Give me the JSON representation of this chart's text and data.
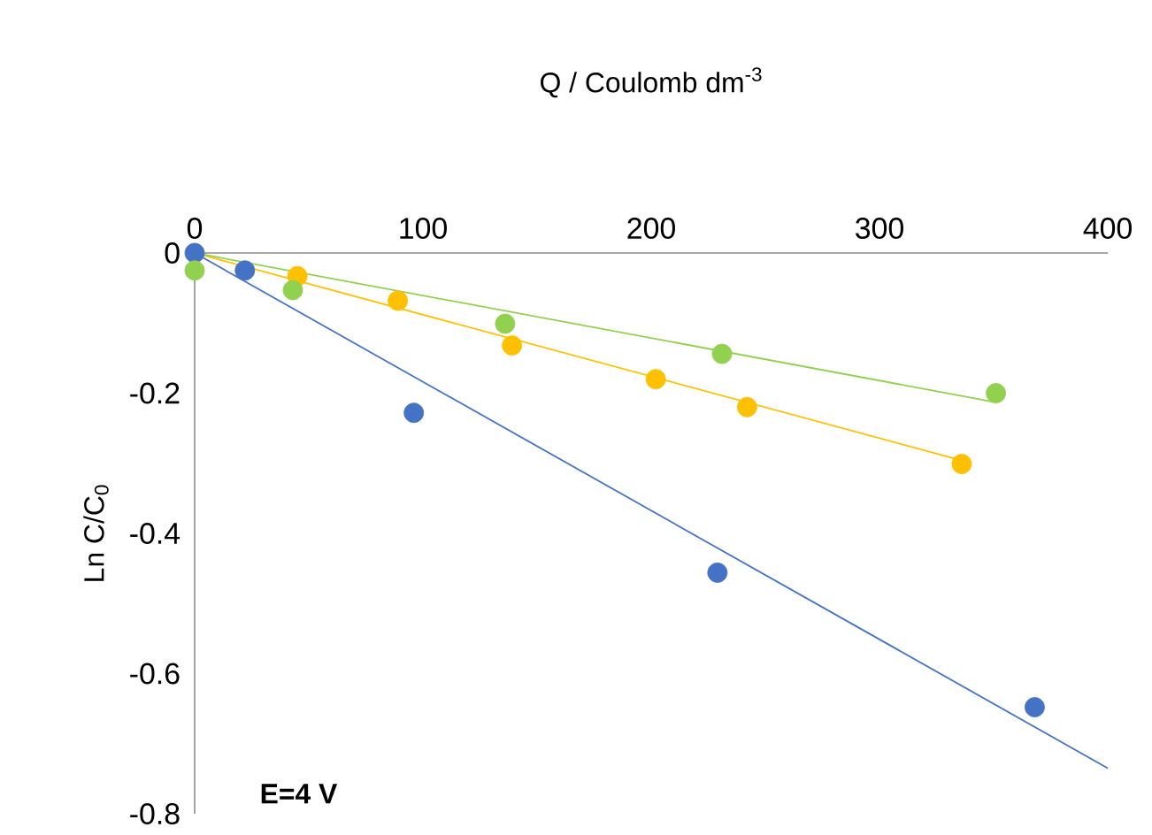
{
  "chart_data": {
    "type": "scatter",
    "xlabel": "Q / Coulomb dm$^{-3}$",
    "ylabel": "Ln C/C$_{0}$",
    "xlim": [
      0,
      400
    ],
    "ylim": [
      -0.8,
      0
    ],
    "xticks": [
      0,
      100,
      200,
      300,
      400
    ],
    "yticks": [
      -0.8,
      -0.6,
      -0.4,
      -0.2,
      0
    ],
    "grid": false,
    "annotations": [
      "**E=4 V**"
    ],
    "series": [
      {
        "type": "line",
        "color": "#4472c4",
        "marker": "none",
        "x": [
          0,
          400
        ],
        "values": [
          0,
          -0.735
        ]
      },
      {
        "type": "line",
        "color": "#ffc000",
        "marker": "none",
        "x": [
          0,
          336
        ],
        "values": [
          0,
          -0.296
        ]
      },
      {
        "type": "line",
        "color": "#92d050",
        "marker": "none",
        "x": [
          0,
          351
        ],
        "values": [
          0,
          -0.213
        ]
      },
      {
        "color": "#4472c4",
        "marker": "circle",
        "x": [
          0,
          22,
          96,
          229,
          368
        ],
        "values": [
          0,
          -0.025,
          -0.228,
          -0.456,
          -0.648
        ]
      },
      {
        "color": "#ffc000",
        "marker": "circle",
        "x": [
          45,
          89,
          139,
          202,
          242,
          336
        ],
        "values": [
          -0.033,
          -0.068,
          -0.132,
          -0.18,
          -0.22,
          -0.301
        ]
      },
      {
        "color": "#92d050",
        "marker": "circle",
        "x": [
          0,
          43,
          136,
          231,
          351
        ],
        "values": [
          -0.025,
          -0.053,
          -0.101,
          -0.144,
          -0.2
        ]
      }
    ]
  }
}
